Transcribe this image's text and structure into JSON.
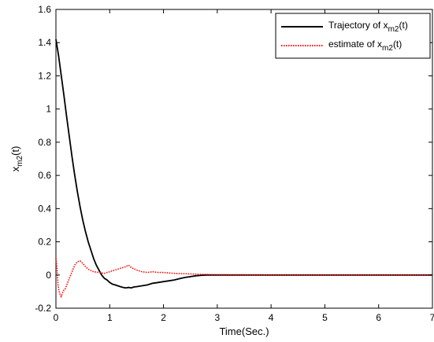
{
  "chart_data": {
    "type": "line",
    "xlabel": "Time(Sec.)",
    "ylabel": {
      "base": "x",
      "sub": "m2",
      "suffix": "(t)"
    },
    "xlim": [
      0,
      7
    ],
    "ylim": [
      -0.2,
      1.6
    ],
    "xticks": [
      0,
      1,
      2,
      3,
      4,
      5,
      6,
      7
    ],
    "yticks": [
      -0.2,
      0,
      0.2,
      0.4,
      0.6,
      0.8,
      1,
      1.2,
      1.4,
      1.6
    ],
    "legend_position": "top-right",
    "grid": false,
    "series": [
      {
        "name": "Trajectory of x_m2(t)",
        "legend": {
          "prefix": "Trajectory of x",
          "sub": "m2",
          "suffix": "(t)"
        },
        "color": "#000000",
        "style": "solid",
        "x": [
          0,
          0.05,
          0.1,
          0.15,
          0.2,
          0.25,
          0.3,
          0.35,
          0.4,
          0.45,
          0.5,
          0.55,
          0.6,
          0.65,
          0.7,
          0.75,
          0.8,
          0.85,
          0.9,
          0.95,
          1.0,
          1.05,
          1.1,
          1.15,
          1.2,
          1.25,
          1.3,
          1.35,
          1.4,
          1.45,
          1.5,
          1.6,
          1.7,
          1.8,
          1.9,
          2.0,
          2.1,
          2.2,
          2.3,
          2.4,
          2.5,
          2.6,
          2.7,
          2.8,
          3.0,
          3.5,
          4.0,
          5.0,
          6.0,
          7.0
        ],
        "y": [
          1.42,
          1.32,
          1.2,
          1.08,
          0.95,
          0.83,
          0.71,
          0.6,
          0.5,
          0.41,
          0.33,
          0.26,
          0.2,
          0.15,
          0.1,
          0.06,
          0.03,
          0.0,
          -0.02,
          -0.03,
          -0.045,
          -0.055,
          -0.06,
          -0.065,
          -0.07,
          -0.075,
          -0.078,
          -0.075,
          -0.078,
          -0.072,
          -0.07,
          -0.065,
          -0.06,
          -0.05,
          -0.045,
          -0.04,
          -0.035,
          -0.03,
          -0.022,
          -0.015,
          -0.01,
          -0.005,
          -0.002,
          0.0,
          0.0,
          0.0,
          0.0,
          0.0,
          0.0,
          0.0
        ]
      },
      {
        "name": "estimate of x_m2(t)",
        "legend": {
          "prefix": "estimate of x",
          "sub": "m2",
          "suffix": "(t)"
        },
        "color": "#ff0000",
        "style": "dotted",
        "x": [
          0,
          0.02,
          0.04,
          0.06,
          0.08,
          0.1,
          0.12,
          0.15,
          0.18,
          0.2,
          0.25,
          0.3,
          0.35,
          0.4,
          0.45,
          0.5,
          0.55,
          0.6,
          0.7,
          0.8,
          0.9,
          1.0,
          1.1,
          1.2,
          1.3,
          1.35,
          1.4,
          1.5,
          1.6,
          1.7,
          1.8,
          1.9,
          2.0,
          2.2,
          2.4,
          2.6,
          2.8,
          3.0,
          3.5,
          4.0,
          5.0,
          6.0,
          7.0
        ],
        "y": [
          0.1,
          0.04,
          -0.06,
          -0.1,
          -0.12,
          -0.13,
          -0.11,
          -0.09,
          -0.08,
          -0.06,
          -0.02,
          0.02,
          0.06,
          0.08,
          0.085,
          0.07,
          0.05,
          0.035,
          0.02,
          0.015,
          0.01,
          0.02,
          0.03,
          0.04,
          0.05,
          0.06,
          0.045,
          0.03,
          0.02,
          0.015,
          0.02,
          0.015,
          0.015,
          0.01,
          0.008,
          0.005,
          0.003,
          0.002,
          0.001,
          0.0,
          0.0,
          0.0,
          0.0
        ]
      }
    ]
  }
}
